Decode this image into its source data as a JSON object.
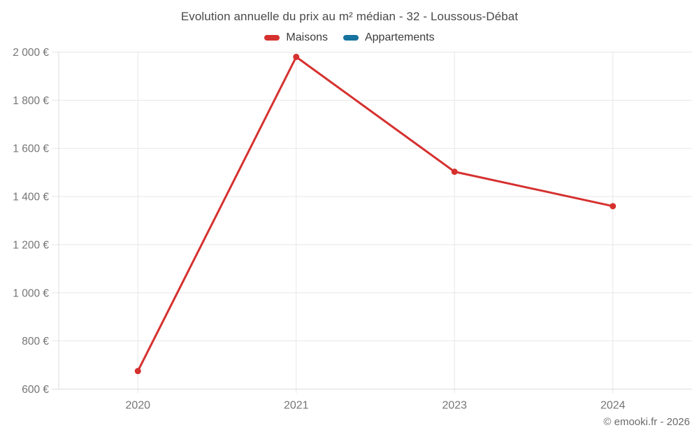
{
  "header": {
    "title": "Evolution annuelle du prix au m² médian - 32 - Loussous-Débat"
  },
  "footer": {
    "copyright": "© emooki.fr - 2026"
  },
  "chart_data": {
    "type": "line",
    "title": "Evolution annuelle du prix au m² médian - 32 - Loussous-Débat",
    "categories": [
      "2020",
      "2021",
      "2023",
      "2024"
    ],
    "series": [
      {
        "name": "Maisons",
        "color": "#d5312f",
        "values": [
          675,
          1980,
          1503,
          1360
        ]
      },
      {
        "name": "Appartements",
        "color": "#16729e",
        "values": []
      }
    ],
    "xlabel": "",
    "ylabel": "",
    "ylim": [
      600,
      2000
    ],
    "ytick_step": 200,
    "ytick_suffix": " €",
    "grid": true,
    "legend_position": "top",
    "styles": {
      "grid_color": "#e7e7e7",
      "axis_color": "#dcdcdc",
      "tick_label_color": "#757575",
      "marker_radius": 4.5,
      "line_width": 3
    }
  }
}
